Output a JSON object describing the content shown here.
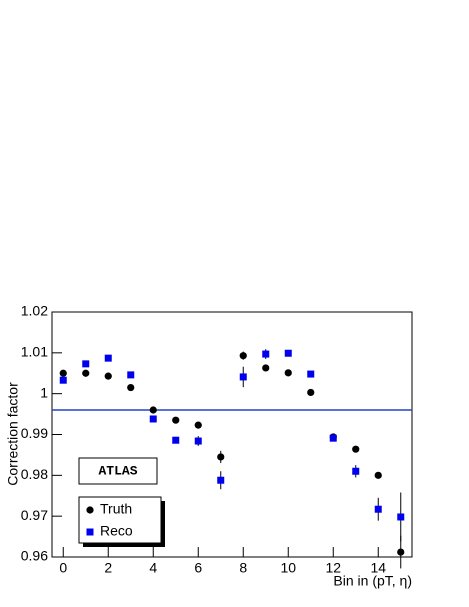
{
  "chart_data": {
    "type": "scatter",
    "x_label": "Bin in (pT, η)",
    "y_label": "Correction factor",
    "annotation": "ATLAS",
    "x": [
      0,
      1,
      2,
      3,
      4,
      5,
      6,
      7,
      8,
      9,
      10,
      11,
      12,
      13,
      14,
      15
    ],
    "series": [
      {
        "name": "Truth",
        "color": "#000000",
        "marker": "circle",
        "values": [
          1.005,
          1.005,
          1.0043,
          1.0015,
          0.996,
          0.9935,
          0.9923,
          0.9845,
          1.0093,
          1.0063,
          1.0051,
          1.0003,
          0.9894,
          0.9864,
          0.98,
          0.9612
        ],
        "errors": [
          0.0004,
          0.0004,
          0.0004,
          0.0004,
          0.0004,
          0.0004,
          0.0006,
          0.0015,
          0.001,
          0.0006,
          0.0004,
          0.0004,
          0.0004,
          0.0007,
          0.0008,
          0.004
        ]
      },
      {
        "name": "Reco",
        "color": "#0000ee",
        "marker": "square",
        "values": [
          1.0033,
          1.0073,
          1.0087,
          1.0046,
          0.9938,
          0.9886,
          0.9884,
          0.9788,
          1.0041,
          1.0097,
          1.0099,
          1.0048,
          0.9891,
          0.981,
          0.9717,
          0.9698
        ],
        "errors": [
          0.0008,
          0.0006,
          0.0006,
          0.0005,
          0.0005,
          0.0008,
          0.0012,
          0.0022,
          0.0025,
          0.0012,
          0.0008,
          0.0005,
          0.0005,
          0.0015,
          0.0028,
          0.006
        ]
      }
    ],
    "reference_line": {
      "value": 0.996,
      "color": "#2244cc"
    },
    "xlim": [
      -0.5,
      15.5
    ],
    "xticks": [
      0,
      2,
      4,
      6,
      8,
      10,
      12,
      14
    ],
    "ylim": [
      0.96,
      1.02
    ],
    "yticks": [
      0.96,
      0.97,
      0.98,
      0.99,
      1,
      1.01,
      1.02
    ],
    "grid": false,
    "legend": "lower left"
  }
}
